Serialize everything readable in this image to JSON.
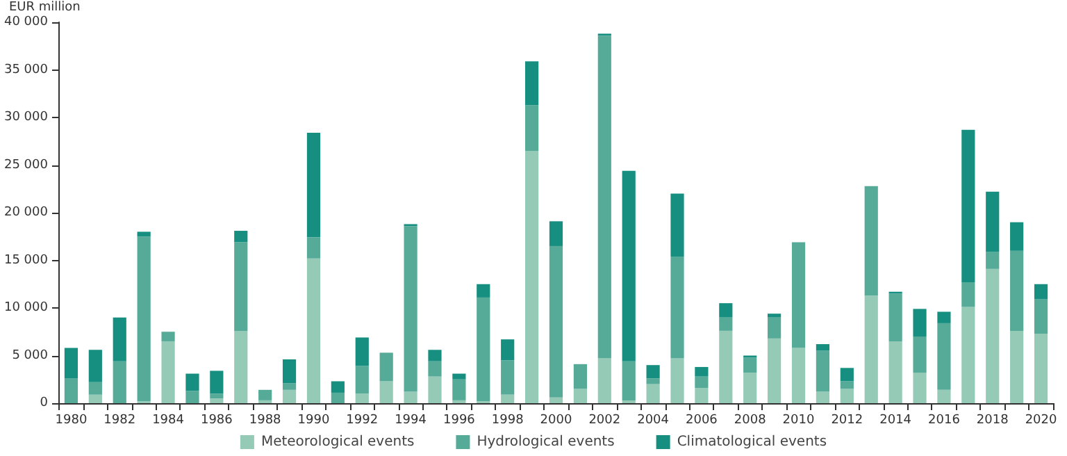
{
  "chart_data": {
    "type": "bar",
    "stacked": true,
    "ylabel": "EUR million",
    "categories": [
      "1980",
      null,
      "1982",
      null,
      "1984",
      null,
      "1986",
      null,
      "1988",
      null,
      "1990",
      null,
      "1992",
      null,
      "1994",
      null,
      "1996",
      null,
      "1998",
      null,
      "2000",
      null,
      "2002",
      null,
      "2004",
      null,
      "2006",
      null,
      "2008",
      null,
      "2010",
      null,
      "2012",
      null,
      "2014",
      null,
      "2016",
      null,
      "2018",
      null,
      "2020"
    ],
    "series": [
      {
        "name": "Meteorological events",
        "color": "#95cab7",
        "values": [
          0,
          900,
          0,
          200,
          6500,
          0,
          500,
          7600,
          300,
          1400,
          15200,
          0,
          1000,
          2300,
          1200,
          2800,
          300,
          200,
          900,
          26500,
          600,
          1500,
          4700,
          300,
          2000,
          4700,
          1600,
          7600,
          3200,
          6800,
          5800,
          1200,
          1500,
          11300,
          6500,
          3200,
          1400,
          10100,
          14100,
          7600,
          7300
        ]
      },
      {
        "name": "Hydrological events",
        "color": "#55aa98",
        "values": [
          2600,
          1300,
          4400,
          17300,
          1000,
          1300,
          500,
          9300,
          1100,
          700,
          2200,
          1100,
          2900,
          3000,
          17400,
          1600,
          2200,
          10900,
          3600,
          4800,
          15900,
          2600,
          33900,
          4100,
          600,
          10700,
          1200,
          1400,
          1600,
          2200,
          11100,
          4300,
          800,
          11500,
          5000,
          3800,
          7000,
          2600,
          1800,
          8400,
          3600
        ]
      },
      {
        "name": "Climatological events",
        "color": "#178f80",
        "values": [
          3200,
          3400,
          4600,
          500,
          0,
          1800,
          2400,
          1200,
          0,
          2500,
          11000,
          1200,
          3000,
          0,
          200,
          1200,
          600,
          1400,
          2200,
          4600,
          2600,
          0,
          200,
          20000,
          1400,
          6600,
          1000,
          1500,
          200,
          400,
          0,
          700,
          1400,
          0,
          200,
          2900,
          1200,
          16000,
          6300,
          3000,
          1600
        ]
      }
    ],
    "ylim": [
      0,
      40000
    ],
    "yticks": [
      0,
      {
        "value": 5000,
        "label": "5 000"
      },
      {
        "value": 10000,
        "label": "10 000"
      },
      {
        "value": 15000,
        "label": "15 000"
      },
      {
        "value": 20000,
        "label": "20 000"
      },
      {
        "value": 25000,
        "label": "25 000"
      },
      {
        "value": 30000,
        "label": "30 000"
      },
      {
        "value": 35000,
        "label": "35 000"
      },
      {
        "value": 40000,
        "label": "40 000"
      }
    ],
    "grid": false,
    "legend": "bottom"
  }
}
